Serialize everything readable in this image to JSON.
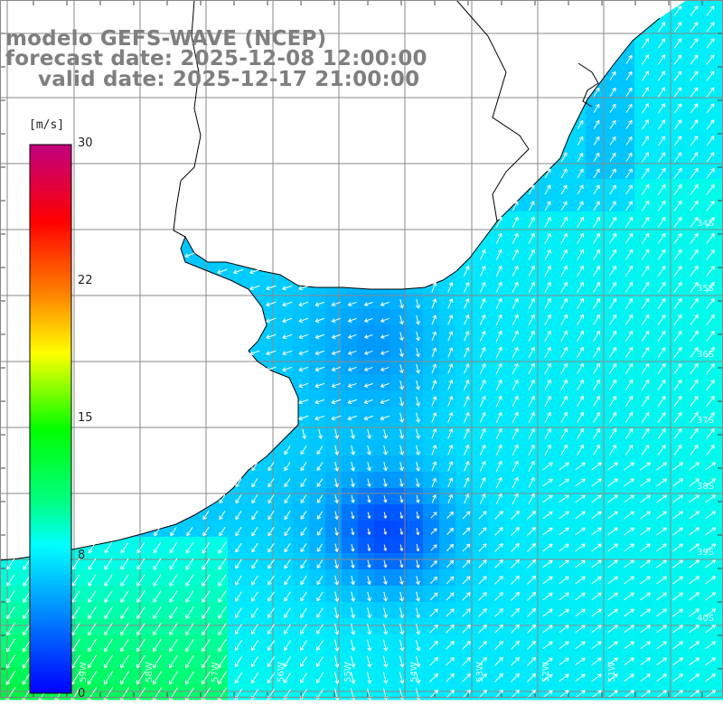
{
  "title": {
    "model": "modelo GEFS-WAVE (NCEP)",
    "forecast": "forecast date: 2025-12-08 12:00:00",
    "valid": "valid date: 2025-12-17 21:00:00"
  },
  "legend": {
    "unit": "[m/s]",
    "ticks": [
      "30",
      "22",
      "15",
      "8",
      "0"
    ],
    "tick_values": [
      30,
      22,
      15,
      8,
      0
    ],
    "range": [
      0,
      30
    ],
    "colors": [
      "#0000ff",
      "#00a0ff",
      "#00ffff",
      "#00e000",
      "#00ff00",
      "#ffff00",
      "#ff8000",
      "#ff0000",
      "#c00080"
    ]
  },
  "map": {
    "region": "Río de la Plata / Uruguay - Argentina coast",
    "land_color": "#ffffff",
    "grid_color": "#888888",
    "lat_labels": [
      "34S",
      "35S",
      "36S",
      "37S",
      "38S",
      "39S",
      "40S"
    ],
    "lon_labels": [
      "59W",
      "58W",
      "57W",
      "56W",
      "55W",
      "54W",
      "53W",
      "52W",
      "51W"
    ]
  }
}
